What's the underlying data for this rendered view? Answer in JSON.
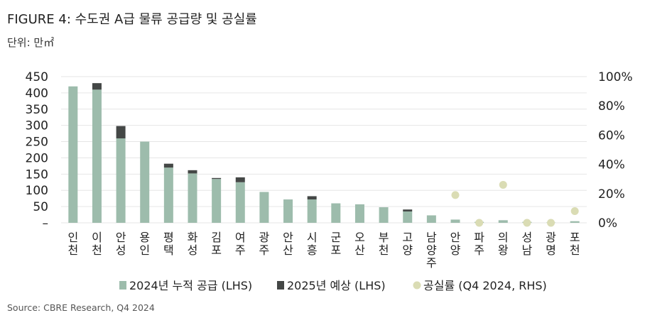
{
  "figure": {
    "title": "FIGURE 4: 수도권 A급 물류 공급량 및 공실률",
    "unit": "단위: 만㎡",
    "source": "Source: CBRE Research, Q4 2024"
  },
  "colors": {
    "supply_2024": "#9dbcac",
    "supply_2025": "#444746",
    "vacancy": "#dadcb4",
    "grid": "#e6e6e6"
  },
  "chart_data": {
    "type": "bar",
    "stacked": true,
    "categories": [
      "인천",
      "이천",
      "안성",
      "용인",
      "평택",
      "화성",
      "김포",
      "여주",
      "광주",
      "안산",
      "시흥",
      "군포",
      "오산",
      "부천",
      "고양",
      "남양주",
      "안양",
      "파주",
      "의왕",
      "성남",
      "광명",
      "포천"
    ],
    "series": [
      {
        "name": "2024년 누적 공급 (LHS)",
        "axis": "left",
        "values": [
          420,
          410,
          260,
          250,
          170,
          152,
          135,
          125,
          95,
          72,
          72,
          60,
          57,
          48,
          35,
          23,
          10,
          3,
          8,
          3,
          1,
          5
        ]
      },
      {
        "name": "2025년 예상 (LHS)",
        "axis": "left",
        "values": [
          0,
          20,
          38,
          0,
          12,
          10,
          3,
          15,
          0,
          0,
          10,
          0,
          0,
          0,
          6,
          0,
          0,
          0,
          0,
          0,
          0,
          0
        ]
      },
      {
        "name": "공실률 (Q4 2024, RHS)",
        "axis": "right",
        "type": "scatter",
        "values": [
          null,
          null,
          null,
          null,
          null,
          null,
          null,
          null,
          null,
          null,
          null,
          null,
          null,
          null,
          null,
          null,
          0.19,
          0.0,
          0.26,
          0.0,
          0.0,
          0.08
        ]
      }
    ],
    "left_axis": {
      "ylim": [
        0,
        450
      ],
      "ticks": [
        450,
        400,
        350,
        300,
        250,
        200,
        150,
        100,
        50,
        0
      ],
      "tick_labels": [
        "450",
        "400",
        "350",
        "300",
        "250",
        "200",
        "150",
        "100",
        "50",
        "–"
      ]
    },
    "right_axis": {
      "ylim": [
        0,
        1.0
      ],
      "ticks": [
        1.0,
        0.8,
        0.6,
        0.4,
        0.2,
        0.0
      ],
      "tick_labels": [
        "100%",
        "80%",
        "60%",
        "40%",
        "20%",
        "0%"
      ]
    },
    "grid": true,
    "legend_position": "bottom"
  }
}
